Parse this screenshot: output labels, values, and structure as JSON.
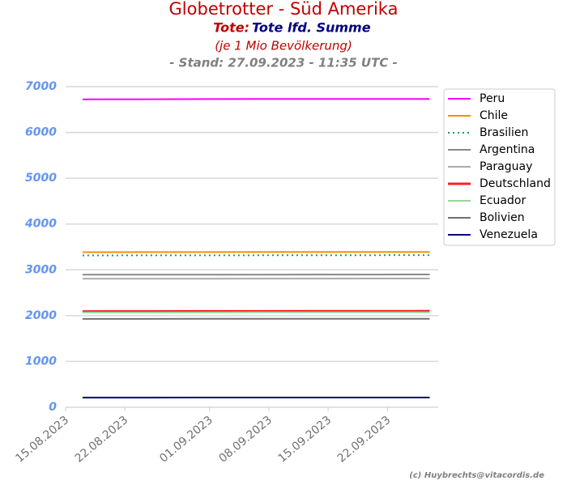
{
  "chart_data": {
    "type": "line",
    "title": "Globetrotter - Süd Amerika",
    "subtitle_prefix": "Tote:",
    "subtitle": "Tote lfd. Summe",
    "note": "(je 1 Mio Bevölkerung)",
    "stand": "- Stand: 27.09.2023 - 11:35 UTC -",
    "credit": "(c) Huybrechts@vitacordis.de",
    "x": [
      "2023-08-17",
      "2023-08-24",
      "2023-08-31",
      "2023-09-07",
      "2023-09-14",
      "2023-09-21",
      "2023-09-27"
    ],
    "xlim": [
      "2023-08-15",
      "2023-09-28"
    ],
    "xticks": [
      {
        "value": "2023-08-15",
        "label": "15.08.2023"
      },
      {
        "value": "2023-08-22",
        "label": "22.08.2023"
      },
      {
        "value": "2023-09-01",
        "label": "01.09.2023"
      },
      {
        "value": "2023-09-08",
        "label": "08.09.2023"
      },
      {
        "value": "2023-09-15",
        "label": "15.09.2023"
      },
      {
        "value": "2023-09-22",
        "label": "22.09.2023"
      }
    ],
    "ylim": [
      0,
      7000
    ],
    "yticks": [
      0,
      1000,
      2000,
      3000,
      4000,
      5000,
      6000,
      7000
    ],
    "grid": true,
    "legend": "right",
    "series": [
      {
        "name": "Peru",
        "color": "#ff00ff",
        "values": [
          6722,
          6724,
          6727,
          6729,
          6730,
          6731,
          6731
        ]
      },
      {
        "name": "Chile",
        "color": "#ff8c00",
        "values": [
          3385,
          3386,
          3387,
          3388,
          3389,
          3390,
          3391
        ]
      },
      {
        "name": "Brasilien",
        "color": "#00a060",
        "line_style": "dotted",
        "values": [
          3315,
          3316,
          3317,
          3318,
          3319,
          3320,
          3321
        ]
      },
      {
        "name": "Argentina",
        "color": "#888888",
        "values": [
          2893,
          2894,
          2895,
          2896,
          2897,
          2898,
          2899
        ]
      },
      {
        "name": "Paraguay",
        "color": "#aaaaaa",
        "values": [
          2805,
          2806,
          2807,
          2808,
          2809,
          2810,
          2811
        ]
      },
      {
        "name": "Deutschland",
        "color": "#ff2020",
        "line_width": 3,
        "values": [
          2092,
          2093,
          2094,
          2095,
          2096,
          2097,
          2099
        ]
      },
      {
        "name": "Ecuador",
        "color": "#98d898",
        "values": [
          2068,
          2069,
          2070,
          2071,
          2072,
          2073,
          2074
        ]
      },
      {
        "name": "Bolivien",
        "color": "#707070",
        "values": [
          1928,
          1929,
          1930,
          1930,
          1931,
          1931,
          1932
        ]
      },
      {
        "name": "Venezuela",
        "color": "#000080",
        "values": [
          211,
          211,
          212,
          212,
          212,
          212,
          213
        ]
      }
    ]
  }
}
